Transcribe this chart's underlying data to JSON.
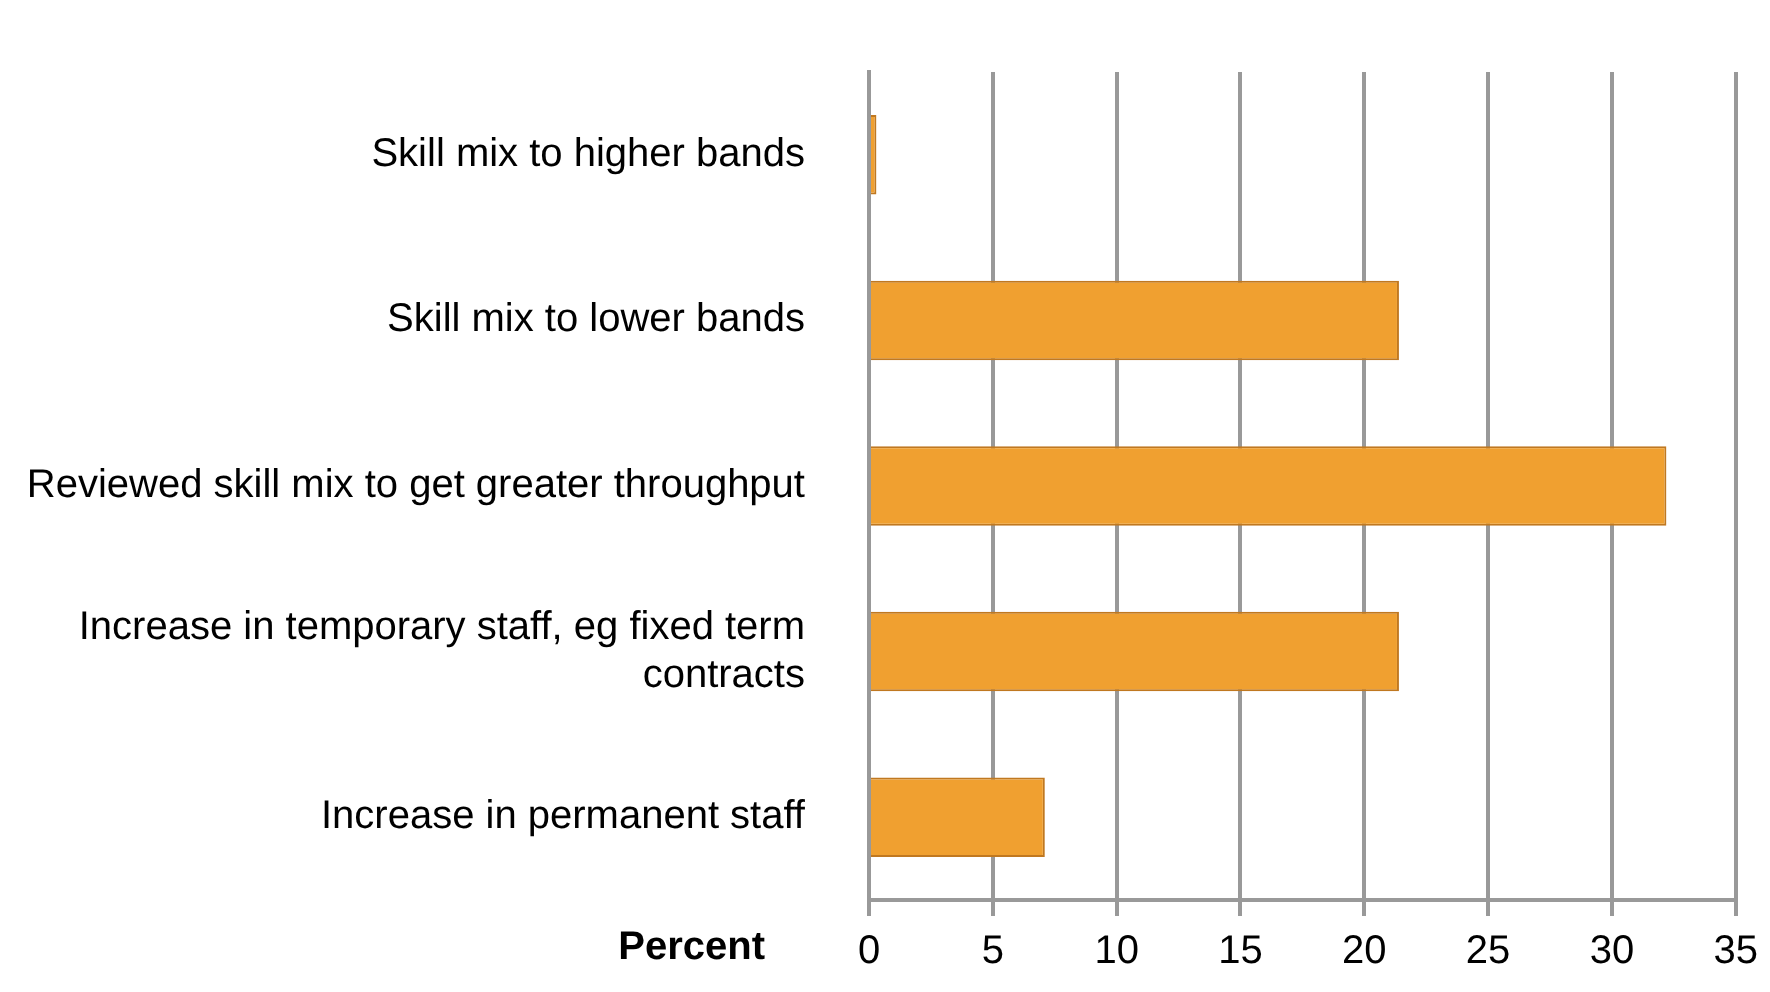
{
  "chart_data": {
    "type": "bar",
    "orientation": "horizontal",
    "xlabel": "Percent",
    "categories": [
      "Skill mix to higher bands",
      "Skill mix to lower bands",
      "Reviewed skill mix to get greater throughput",
      "Increase in temporary staff, eg fixed term contracts",
      "Increase in permanent staff"
    ],
    "values": [
      0.3,
      21.4,
      32.2,
      21.4,
      7.1
    ],
    "color": "#f0a030",
    "xlim": [
      0,
      35
    ],
    "xticks": [
      0,
      5,
      10,
      15,
      20,
      25,
      30,
      35
    ],
    "grid": "x",
    "legend": false
  }
}
